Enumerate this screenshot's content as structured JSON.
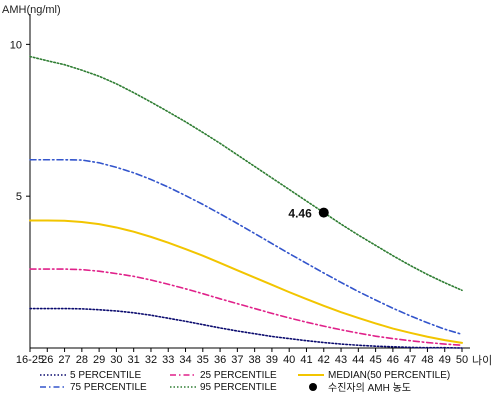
{
  "chart_data": {
    "type": "line",
    "ylabel": "AMH(ng/ml)",
    "xlabel": "나이",
    "categories": [
      "16-25",
      "26",
      "27",
      "28",
      "29",
      "30",
      "31",
      "32",
      "33",
      "34",
      "35",
      "36",
      "37",
      "38",
      "39",
      "40",
      "41",
      "42",
      "43",
      "44",
      "45",
      "46",
      "47",
      "48",
      "49",
      "50"
    ],
    "ylim": [
      0,
      11
    ],
    "yticks": [
      5,
      10
    ],
    "grid": false,
    "legend_position": "bottom",
    "series": [
      {
        "name": "5 PERCENTILE",
        "color": "#0a0a6e",
        "style": "dotted",
        "values": [
          1.3,
          1.3,
          1.3,
          1.29,
          1.26,
          1.22,
          1.16,
          1.08,
          0.98,
          0.88,
          0.77,
          0.66,
          0.56,
          0.47,
          0.38,
          0.31,
          0.24,
          0.18,
          0.13,
          0.09,
          0.06,
          0.04,
          0.02,
          0.01,
          0.01,
          0.0
        ]
      },
      {
        "name": "25 PERCENTILE",
        "color": "#e0218a",
        "style": "dashdot",
        "values": [
          2.6,
          2.6,
          2.6,
          2.58,
          2.53,
          2.45,
          2.36,
          2.24,
          2.1,
          1.95,
          1.79,
          1.62,
          1.46,
          1.3,
          1.14,
          0.99,
          0.85,
          0.72,
          0.6,
          0.49,
          0.39,
          0.31,
          0.24,
          0.18,
          0.13,
          0.09
        ]
      },
      {
        "name": "MEDIAN(50 PERCENTILE)",
        "color": "#f2c500",
        "style": "solid",
        "values": [
          4.2,
          4.2,
          4.19,
          4.15,
          4.08,
          3.97,
          3.83,
          3.66,
          3.47,
          3.26,
          3.04,
          2.8,
          2.56,
          2.32,
          2.08,
          1.84,
          1.61,
          1.39,
          1.18,
          0.99,
          0.81,
          0.64,
          0.5,
          0.37,
          0.26,
          0.17
        ]
      },
      {
        "name": "75 PERCENTILE",
        "color": "#3355cc",
        "style": "dashdot",
        "values": [
          6.2,
          6.2,
          6.2,
          6.19,
          6.1,
          5.95,
          5.77,
          5.55,
          5.3,
          5.02,
          4.73,
          4.42,
          4.1,
          3.77,
          3.44,
          3.11,
          2.79,
          2.47,
          2.16,
          1.86,
          1.58,
          1.31,
          1.06,
          0.83,
          0.62,
          0.45
        ]
      },
      {
        "name": "95 PERCENTILE",
        "color": "#2e7d32",
        "style": "dotted",
        "values": [
          9.6,
          9.46,
          9.33,
          9.15,
          8.95,
          8.7,
          8.41,
          8.1,
          7.78,
          7.45,
          7.1,
          6.74,
          6.36,
          5.98,
          5.6,
          5.22,
          4.84,
          4.46,
          4.08,
          3.72,
          3.38,
          3.04,
          2.72,
          2.42,
          2.15,
          1.9
        ]
      }
    ],
    "marker": {
      "name": "수진자의 AMH 농도",
      "x": "42",
      "y": 4.46,
      "label": "4.46",
      "color": "#000000"
    }
  }
}
